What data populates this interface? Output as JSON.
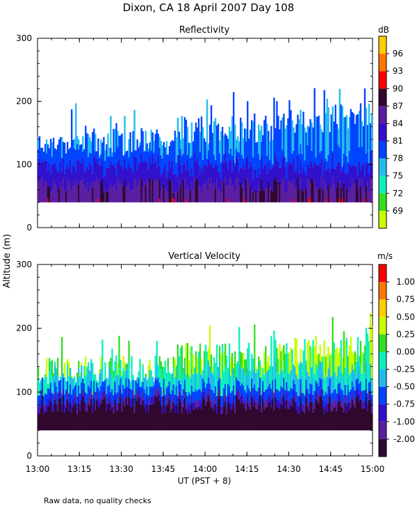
{
  "figure": {
    "title": "Dixon, CA 18 April 2007  Day 108",
    "shared_ylabel": "Altitude  (m)",
    "shared_xlabel": "UT  (PST + 8)",
    "footnote": "Raw data, no quality checks"
  },
  "chart_data": [
    {
      "type": "heatmap",
      "title": "Reflectivity",
      "colorbar_label": "dB",
      "x_ticks": [
        "13:00",
        "13:15",
        "13:30",
        "13:45",
        "14:00",
        "14:15",
        "14:30",
        "14:45",
        "15:00"
      ],
      "x_range_minutes": [
        0,
        120
      ],
      "y_ticks": [
        0,
        100,
        200,
        300
      ],
      "y_range": [
        0,
        300
      ],
      "data_floor_m": 40,
      "colorbar_ticks": [
        "69",
        "72",
        "75",
        "78",
        "81",
        "84",
        "87",
        "90",
        "93",
        "96"
      ],
      "colorbar_colors": [
        "#c8ff00",
        "#33dd22",
        "#11eebb",
        "#22bbee",
        "#0044ff",
        "#3311cc",
        "#5a1fa0",
        "#30082e",
        "#ff0000",
        "#ff7700",
        "#ffcc00"
      ]
    },
    {
      "type": "heatmap",
      "title": "Vertical Velocity",
      "colorbar_label": "m/s",
      "x_ticks": [
        "13:00",
        "13:15",
        "13:30",
        "13:45",
        "14:00",
        "14:15",
        "14:30",
        "14:45",
        "15:00"
      ],
      "x_range_minutes": [
        0,
        120
      ],
      "y_ticks": [
        0,
        100,
        200,
        300
      ],
      "y_range": [
        0,
        300
      ],
      "data_floor_m": 40,
      "colorbar_ticks": [
        "-2.00",
        "-1.00",
        "-0.75",
        "-0.50",
        "-0.25",
        "0.00",
        "0.25",
        "0.50",
        "0.75",
        "1.00"
      ],
      "colorbar_colors": [
        "#30082e",
        "#5a1fa0",
        "#3311cc",
        "#0044ff",
        "#22bbee",
        "#11eebb",
        "#33dd22",
        "#c8ff00",
        "#ffcc00",
        "#ff7700",
        "#ff0000"
      ]
    }
  ]
}
